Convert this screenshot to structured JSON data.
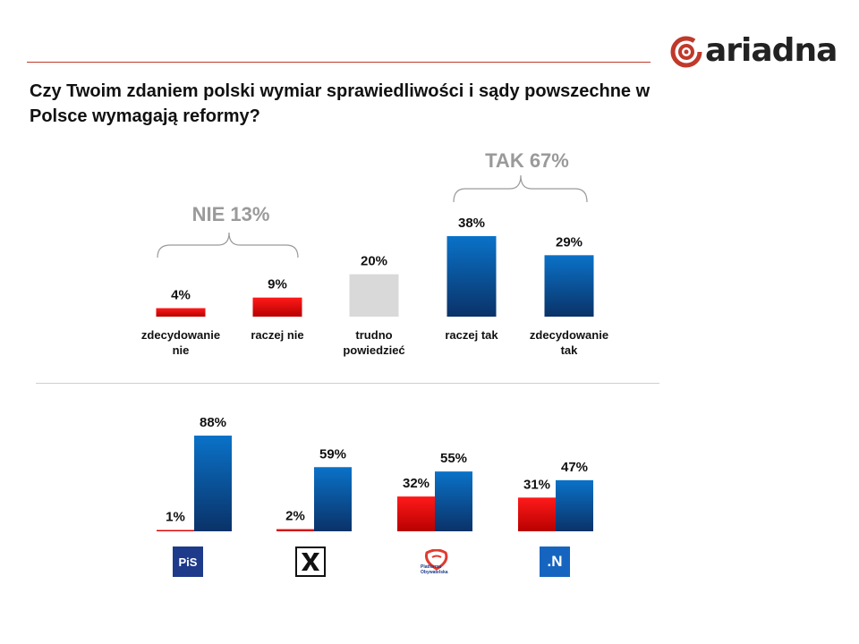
{
  "brand": {
    "name": "ariadna",
    "accent": "#c0392b"
  },
  "question": "Czy Twoim zdaniem polski wymiar sprawiedliwości i sądy powszechne w Polsce wymagają reformy?",
  "groups": {
    "nie_label": "NIE 13%",
    "tak_label": "TAK 67%"
  },
  "parties": [
    {
      "id": "pis",
      "label": "PiS",
      "icon": "pis-logo-icon"
    },
    {
      "id": "kukiz",
      "label": "",
      "icon": "kukiz-logo-icon"
    },
    {
      "id": "po",
      "label": "Platforma Obywatelska",
      "icon": "po-logo-icon"
    },
    {
      "id": "nowoczesna",
      "label": ".N",
      "icon": "nowoczesna-logo-icon"
    }
  ],
  "colors": {
    "red": "#e00000",
    "blue": "#0070c0",
    "navy": "#0a3a78",
    "grey": "#d9d9d9"
  },
  "chart_data": [
    {
      "type": "bar",
      "categories": [
        "zdecydowanie nie",
        "raczej nie",
        "trudno powiedzieć",
        "raczej tak",
        "zdecydowanie tak"
      ],
      "values": [
        4,
        9,
        20,
        38,
        29
      ],
      "value_labels": [
        "4%",
        "9%",
        "20%",
        "38%",
        "29%"
      ],
      "colors": [
        "red",
        "red",
        "grey",
        "blue",
        "blue"
      ],
      "ylim": [
        0,
        40
      ]
    },
    {
      "type": "bar",
      "categories": [
        "PiS",
        "Kukiz'15",
        "PO",
        "Nowoczesna"
      ],
      "series": [
        {
          "values": [
            1,
            2,
            32,
            31
          ],
          "value_labels": [
            "1%",
            "2%",
            "32%",
            "31%"
          ],
          "color": "red"
        },
        {
          "values": [
            88,
            59,
            55,
            47
          ],
          "value_labels": [
            "88%",
            "59%",
            "55%",
            "47%"
          ],
          "color": "blue"
        }
      ],
      "ylim": [
        0,
        90
      ]
    }
  ]
}
